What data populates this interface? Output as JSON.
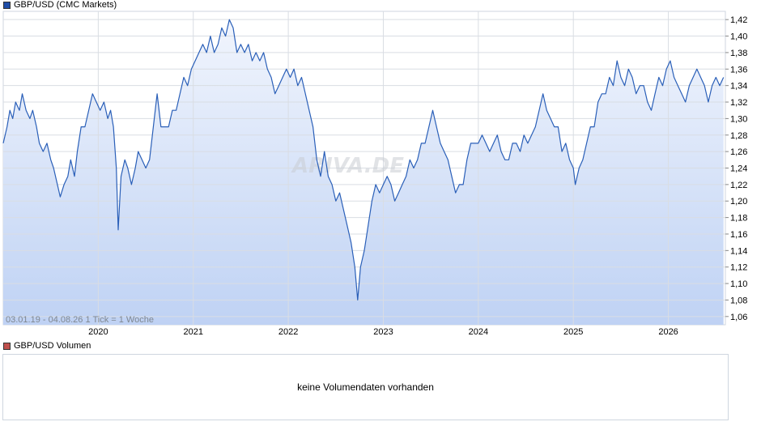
{
  "legend": {
    "price_label": "GBP/USD (CMC Markets)",
    "price_color": "#1f4ea8",
    "volume_label": "GBP/USD Volumen",
    "volume_color": "#c0504d"
  },
  "range_text": "03.01.19 - 04.08.26    1 Tick = 1 Woche",
  "watermark": "ARIVA.DE",
  "volume_panel": {
    "message": "keine Volumendaten vorhanden"
  },
  "colors": {
    "line": "#2a5fb8",
    "fill_top": "#f1f5fd",
    "fill_bottom": "#bfd2f4",
    "grid": "#d9dde3"
  },
  "chart_data": {
    "type": "area",
    "title": "",
    "xlabel": "",
    "ylabel": "",
    "x_ticks": [
      "2020",
      "2021",
      "2022",
      "2023",
      "2024",
      "2025",
      "2026"
    ],
    "y_ticks": [
      "1,06",
      "1,08",
      "1,10",
      "1,12",
      "1,14",
      "1,16",
      "1,18",
      "1,20",
      "1,22",
      "1,24",
      "1,26",
      "1,28",
      "1,30",
      "1,32",
      "1,34",
      "1,36",
      "1,38",
      "1,40",
      "1,42"
    ],
    "ylim": [
      1.05,
      1.43
    ],
    "xlim": [
      2019.0,
      2026.6
    ],
    "grid": true,
    "y_axis_side": "right",
    "series": [
      {
        "values": [
          [
            2019.0,
            1.27
          ],
          [
            2019.04,
            1.29
          ],
          [
            2019.07,
            1.31
          ],
          [
            2019.1,
            1.3
          ],
          [
            2019.13,
            1.32
          ],
          [
            2019.17,
            1.31
          ],
          [
            2019.2,
            1.33
          ],
          [
            2019.24,
            1.31
          ],
          [
            2019.28,
            1.3
          ],
          [
            2019.31,
            1.31
          ],
          [
            2019.35,
            1.29
          ],
          [
            2019.38,
            1.27
          ],
          [
            2019.42,
            1.26
          ],
          [
            2019.46,
            1.27
          ],
          [
            2019.5,
            1.25
          ],
          [
            2019.53,
            1.24
          ],
          [
            2019.57,
            1.22
          ],
          [
            2019.6,
            1.205
          ],
          [
            2019.64,
            1.22
          ],
          [
            2019.68,
            1.23
          ],
          [
            2019.71,
            1.25
          ],
          [
            2019.75,
            1.23
          ],
          [
            2019.78,
            1.26
          ],
          [
            2019.82,
            1.29
          ],
          [
            2019.86,
            1.29
          ],
          [
            2019.9,
            1.31
          ],
          [
            2019.94,
            1.33
          ],
          [
            2019.98,
            1.32
          ],
          [
            2020.02,
            1.31
          ],
          [
            2020.06,
            1.32
          ],
          [
            2020.1,
            1.3
          ],
          [
            2020.13,
            1.31
          ],
          [
            2020.16,
            1.29
          ],
          [
            2020.19,
            1.24
          ],
          [
            2020.21,
            1.165
          ],
          [
            2020.24,
            1.23
          ],
          [
            2020.28,
            1.25
          ],
          [
            2020.31,
            1.24
          ],
          [
            2020.35,
            1.22
          ],
          [
            2020.39,
            1.24
          ],
          [
            2020.42,
            1.26
          ],
          [
            2020.46,
            1.25
          ],
          [
            2020.5,
            1.24
          ],
          [
            2020.54,
            1.25
          ],
          [
            2020.58,
            1.29
          ],
          [
            2020.62,
            1.33
          ],
          [
            2020.66,
            1.29
          ],
          [
            2020.7,
            1.29
          ],
          [
            2020.74,
            1.29
          ],
          [
            2020.78,
            1.31
          ],
          [
            2020.82,
            1.31
          ],
          [
            2020.86,
            1.33
          ],
          [
            2020.9,
            1.35
          ],
          [
            2020.94,
            1.34
          ],
          [
            2020.98,
            1.36
          ],
          [
            2021.02,
            1.37
          ],
          [
            2021.06,
            1.38
          ],
          [
            2021.1,
            1.39
          ],
          [
            2021.14,
            1.38
          ],
          [
            2021.18,
            1.4
          ],
          [
            2021.22,
            1.38
          ],
          [
            2021.26,
            1.39
          ],
          [
            2021.3,
            1.41
          ],
          [
            2021.34,
            1.4
          ],
          [
            2021.38,
            1.42
          ],
          [
            2021.42,
            1.41
          ],
          [
            2021.46,
            1.38
          ],
          [
            2021.5,
            1.39
          ],
          [
            2021.54,
            1.38
          ],
          [
            2021.58,
            1.39
          ],
          [
            2021.62,
            1.37
          ],
          [
            2021.66,
            1.38
          ],
          [
            2021.7,
            1.37
          ],
          [
            2021.74,
            1.38
          ],
          [
            2021.78,
            1.36
          ],
          [
            2021.82,
            1.35
          ],
          [
            2021.86,
            1.33
          ],
          [
            2021.9,
            1.34
          ],
          [
            2021.94,
            1.35
          ],
          [
            2021.98,
            1.36
          ],
          [
            2022.02,
            1.35
          ],
          [
            2022.06,
            1.36
          ],
          [
            2022.1,
            1.34
          ],
          [
            2022.14,
            1.35
          ],
          [
            2022.18,
            1.33
          ],
          [
            2022.22,
            1.31
          ],
          [
            2022.26,
            1.29
          ],
          [
            2022.3,
            1.25
          ],
          [
            2022.34,
            1.23
          ],
          [
            2022.38,
            1.26
          ],
          [
            2022.42,
            1.23
          ],
          [
            2022.46,
            1.22
          ],
          [
            2022.5,
            1.2
          ],
          [
            2022.54,
            1.21
          ],
          [
            2022.58,
            1.19
          ],
          [
            2022.62,
            1.17
          ],
          [
            2022.66,
            1.15
          ],
          [
            2022.7,
            1.12
          ],
          [
            2022.73,
            1.08
          ],
          [
            2022.76,
            1.12
          ],
          [
            2022.8,
            1.14
          ],
          [
            2022.84,
            1.17
          ],
          [
            2022.88,
            1.2
          ],
          [
            2022.92,
            1.22
          ],
          [
            2022.96,
            1.21
          ],
          [
            2023.0,
            1.22
          ],
          [
            2023.04,
            1.23
          ],
          [
            2023.08,
            1.22
          ],
          [
            2023.12,
            1.2
          ],
          [
            2023.16,
            1.21
          ],
          [
            2023.2,
            1.22
          ],
          [
            2023.24,
            1.23
          ],
          [
            2023.28,
            1.25
          ],
          [
            2023.32,
            1.24
          ],
          [
            2023.36,
            1.25
          ],
          [
            2023.4,
            1.27
          ],
          [
            2023.44,
            1.27
          ],
          [
            2023.48,
            1.29
          ],
          [
            2023.52,
            1.31
          ],
          [
            2023.56,
            1.29
          ],
          [
            2023.6,
            1.27
          ],
          [
            2023.64,
            1.26
          ],
          [
            2023.68,
            1.25
          ],
          [
            2023.72,
            1.23
          ],
          [
            2023.76,
            1.21
          ],
          [
            2023.8,
            1.22
          ],
          [
            2023.84,
            1.22
          ],
          [
            2023.88,
            1.25
          ],
          [
            2023.92,
            1.27
          ],
          [
            2023.96,
            1.27
          ],
          [
            2024.0,
            1.27
          ],
          [
            2024.04,
            1.28
          ],
          [
            2024.08,
            1.27
          ],
          [
            2024.12,
            1.26
          ],
          [
            2024.16,
            1.27
          ],
          [
            2024.2,
            1.28
          ],
          [
            2024.24,
            1.26
          ],
          [
            2024.28,
            1.25
          ],
          [
            2024.32,
            1.25
          ],
          [
            2024.36,
            1.27
          ],
          [
            2024.4,
            1.27
          ],
          [
            2024.44,
            1.26
          ],
          [
            2024.48,
            1.28
          ],
          [
            2024.52,
            1.27
          ],
          [
            2024.56,
            1.28
          ],
          [
            2024.6,
            1.29
          ],
          [
            2024.64,
            1.31
          ],
          [
            2024.68,
            1.33
          ],
          [
            2024.72,
            1.31
          ],
          [
            2024.76,
            1.3
          ],
          [
            2024.8,
            1.29
          ],
          [
            2024.84,
            1.29
          ],
          [
            2024.88,
            1.26
          ],
          [
            2024.92,
            1.27
          ],
          [
            2024.96,
            1.25
          ],
          [
            2025.0,
            1.24
          ],
          [
            2025.02,
            1.22
          ],
          [
            2025.06,
            1.24
          ],
          [
            2025.1,
            1.25
          ],
          [
            2025.14,
            1.27
          ],
          [
            2025.18,
            1.29
          ],
          [
            2025.22,
            1.29
          ],
          [
            2025.26,
            1.32
          ],
          [
            2025.3,
            1.33
          ],
          [
            2025.34,
            1.33
          ],
          [
            2025.38,
            1.35
          ],
          [
            2025.42,
            1.34
          ],
          [
            2025.46,
            1.37
          ],
          [
            2025.5,
            1.35
          ],
          [
            2025.54,
            1.34
          ],
          [
            2025.58,
            1.36
          ],
          [
            2025.62,
            1.35
          ],
          [
            2025.66,
            1.33
          ],
          [
            2025.7,
            1.34
          ],
          [
            2025.74,
            1.34
          ],
          [
            2025.78,
            1.32
          ],
          [
            2025.82,
            1.31
          ],
          [
            2025.86,
            1.33
          ],
          [
            2025.9,
            1.35
          ],
          [
            2025.94,
            1.34
          ],
          [
            2025.98,
            1.36
          ],
          [
            2026.02,
            1.37
          ],
          [
            2026.06,
            1.35
          ],
          [
            2026.1,
            1.34
          ],
          [
            2026.14,
            1.33
          ],
          [
            2026.18,
            1.32
          ],
          [
            2026.22,
            1.34
          ],
          [
            2026.26,
            1.35
          ],
          [
            2026.3,
            1.36
          ],
          [
            2026.34,
            1.35
          ],
          [
            2026.38,
            1.34
          ],
          [
            2026.42,
            1.32
          ],
          [
            2026.46,
            1.34
          ],
          [
            2026.5,
            1.35
          ],
          [
            2026.54,
            1.34
          ],
          [
            2026.58,
            1.35
          ]
        ]
      }
    ]
  }
}
